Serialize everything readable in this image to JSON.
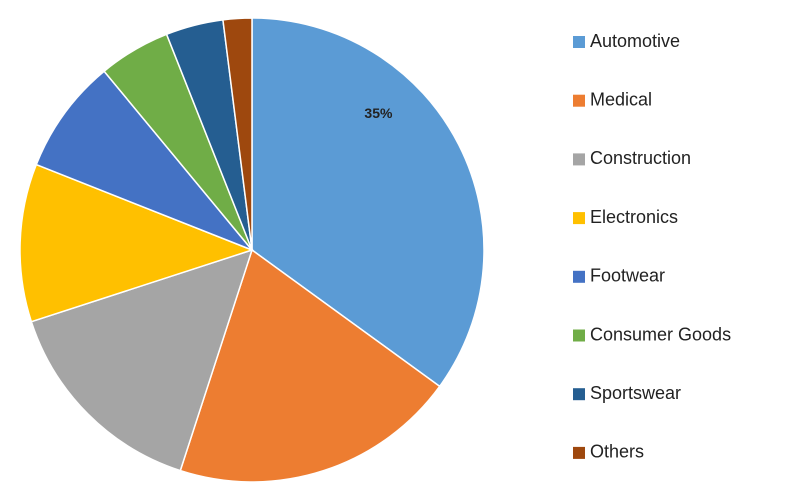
{
  "chart_data": {
    "type": "pie",
    "categories": [
      "Automotive",
      "Medical",
      "Construction",
      "Electronics",
      "Footwear",
      "Consumer Goods",
      "Sportswear",
      "Others"
    ],
    "values": [
      35,
      20,
      15,
      11,
      8,
      5,
      4,
      2
    ],
    "value_labels": [
      "35%",
      null,
      null,
      null,
      null,
      null,
      null,
      null
    ],
    "colors": [
      "#5b9bd5",
      "#ed7d31",
      "#a5a5a5",
      "#ffc000",
      "#4472c4",
      "#70ad47",
      "#255e91",
      "#9e480e"
    ],
    "legend": "right"
  }
}
